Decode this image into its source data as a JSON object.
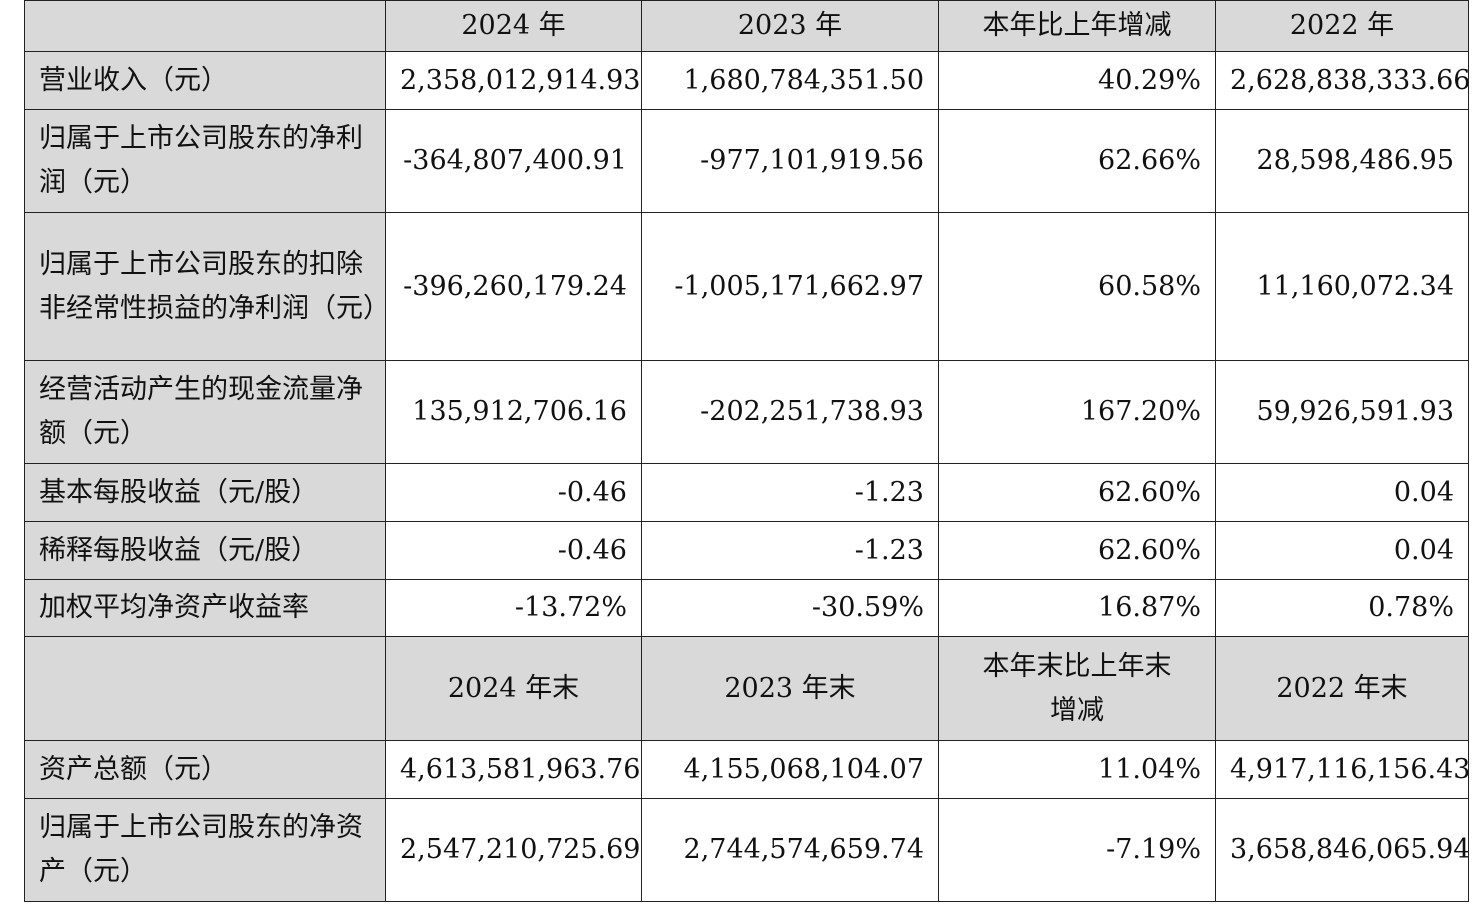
{
  "header1": {
    "corner": "",
    "cols": [
      "2024 年",
      "2023 年",
      "本年比上年增减",
      "2022 年"
    ]
  },
  "rows1": [
    {
      "label": "营业收入（元）",
      "values": [
        "2,358,012,914.93",
        "1,680,784,351.50",
        "40.29%",
        "2,628,838,333.66"
      ]
    },
    {
      "label": "归属于上市公司股东的净利润（元）",
      "values": [
        "-364,807,400.91",
        "-977,101,919.56",
        "62.66%",
        "28,598,486.95"
      ]
    },
    {
      "label": "归属于上市公司股东的扣除非经常性损益的净利润（元）",
      "values": [
        "-396,260,179.24",
        "-1,005,171,662.97",
        "60.58%",
        "11,160,072.34"
      ]
    },
    {
      "label": "经营活动产生的现金流量净额（元）",
      "values": [
        "135,912,706.16",
        "-202,251,738.93",
        "167.20%",
        "59,926,591.93"
      ]
    },
    {
      "label": "基本每股收益（元/股）",
      "values": [
        "-0.46",
        "-1.23",
        "62.60%",
        "0.04"
      ]
    },
    {
      "label": "稀释每股收益（元/股）",
      "values": [
        "-0.46",
        "-1.23",
        "62.60%",
        "0.04"
      ]
    },
    {
      "label": "加权平均净资产收益率",
      "values": [
        "-13.72%",
        "-30.59%",
        "16.87%",
        "0.78%"
      ]
    }
  ],
  "header2": {
    "corner": "",
    "cols": [
      "2024 年末",
      "2023 年末",
      "本年末比上年末增减",
      "2022 年末"
    ]
  },
  "rows2": [
    {
      "label": "资产总额（元）",
      "values": [
        "4,613,581,963.76",
        "4,155,068,104.07",
        "11.04%",
        "4,917,116,156.43"
      ]
    },
    {
      "label": "归属于上市公司股东的净资产（元）",
      "values": [
        "2,547,210,725.69",
        "2,744,574,659.74",
        "-7.19%",
        "3,658,846,065.94"
      ]
    }
  ]
}
